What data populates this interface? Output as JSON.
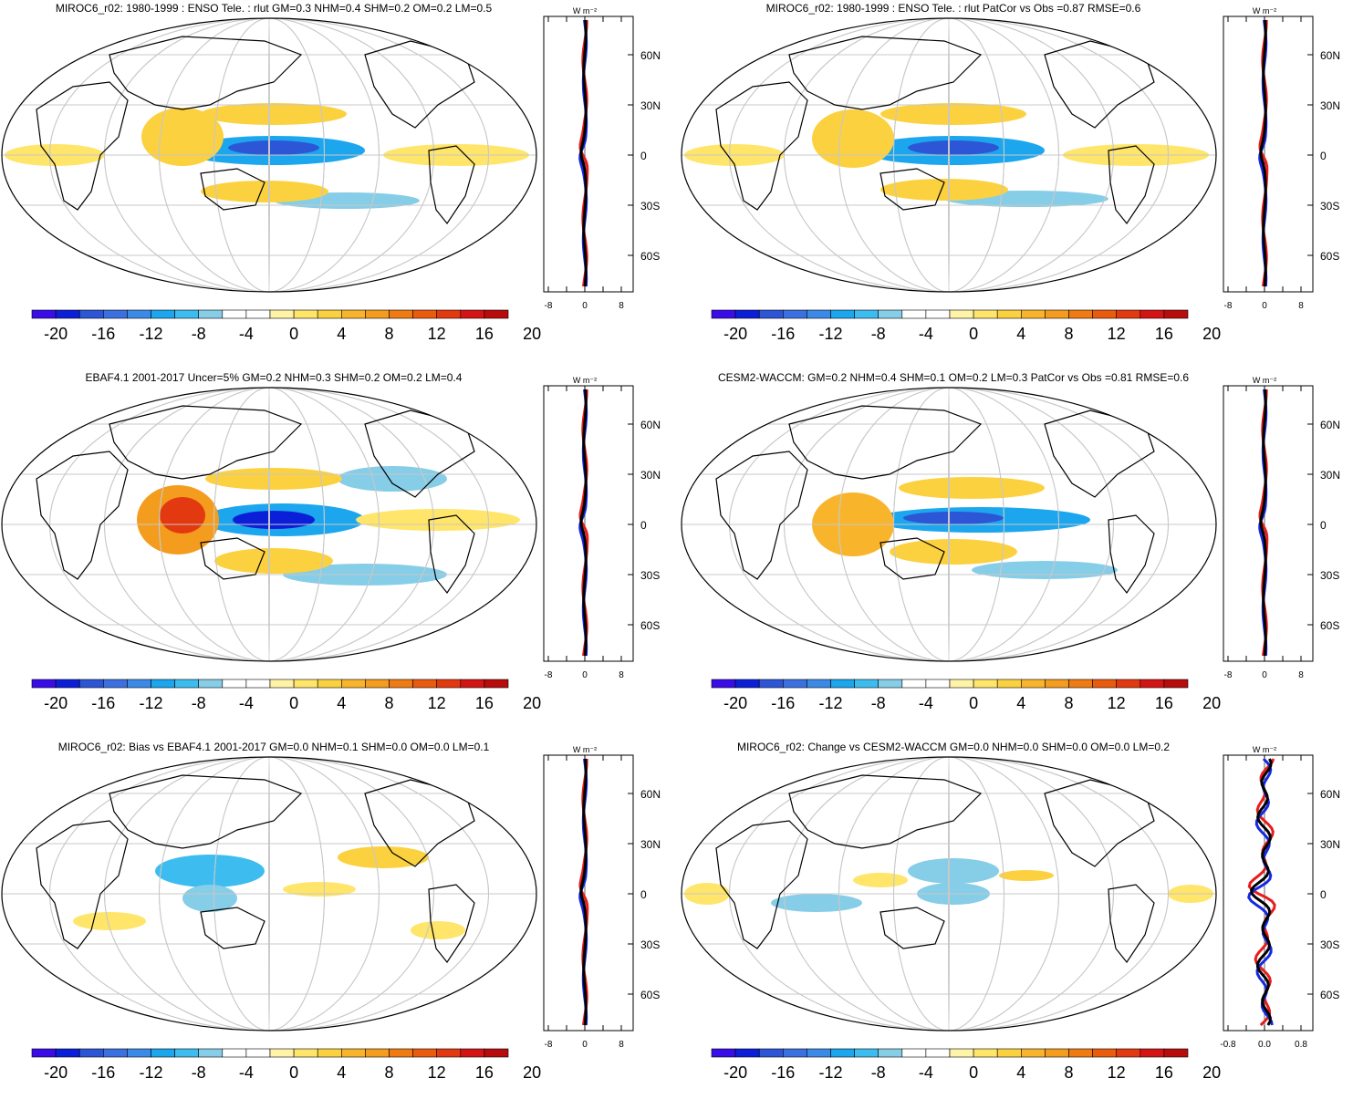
{
  "figure": {
    "colorbar": {
      "tick_labels": [
        "-20",
        "-16",
        "-12",
        "-8",
        "-4",
        "0",
        "4",
        "8",
        "12",
        "16",
        "20"
      ],
      "colors": [
        "#3a0de8",
        "#0c1fd8",
        "#2c56d6",
        "#3b70e0",
        "#3c8ae8",
        "#1ba6ee",
        "#3dbcf0",
        "#86cde8",
        "#ffffff",
        "#ffffff",
        "#fff3a8",
        "#ffe56a",
        "#fcd13f",
        "#f8b52b",
        "#f49c1d",
        "#f07b12",
        "#ea5b0d",
        "#e33910",
        "#d41414",
        "#b80c0c"
      ]
    },
    "profile_units_label": "W m⁻²",
    "lat_labels": [
      "60N",
      "30N",
      "0",
      "30S",
      "60S"
    ],
    "series_colors": {
      "red": "#e81c1c",
      "blue": "#1428e0",
      "black": "#000000"
    },
    "panels": [
      {
        "title": "MIROC6_r02: 1980-1999 : ENSO Tele. : rlut GM=0.3 NHM=0.4 SHM=0.2 OM=0.2 LM=0.5",
        "profile_ticks": [
          "-8",
          "0",
          "8"
        ],
        "blobs": [
          {
            "cx": 300,
            "cy": 165,
            "rx": 100,
            "ry": 16,
            "level": -10
          },
          {
            "cx": 300,
            "cy": 162,
            "rx": 50,
            "ry": 8,
            "level": -16
          },
          {
            "cx": 380,
            "cy": 220,
            "rx": 80,
            "ry": 9,
            "level": -6
          },
          {
            "cx": 200,
            "cy": 150,
            "rx": 45,
            "ry": 32,
            "level": 5
          },
          {
            "cx": 300,
            "cy": 125,
            "rx": 80,
            "ry": 12,
            "level": 4
          },
          {
            "cx": 290,
            "cy": 210,
            "rx": 70,
            "ry": 12,
            "level": 4
          },
          {
            "cx": 60,
            "cy": 170,
            "rx": 55,
            "ry": 12,
            "level": 3
          },
          {
            "cx": 500,
            "cy": 170,
            "rx": 80,
            "ry": 12,
            "level": 3
          },
          {
            "cx": 470,
            "cy": 120,
            "rx": 40,
            "ry": 8,
            "level": -4
          }
        ]
      },
      {
        "title": "MIROC6_r02: 1980-1999 : ENSO Tele. : rlut PatCor vs Obs =0.87 RMSE=0.6",
        "profile_ticks": [
          "-8",
          "0",
          "8"
        ],
        "blobs": [
          {
            "cx": 300,
            "cy": 165,
            "rx": 100,
            "ry": 16,
            "level": -10
          },
          {
            "cx": 300,
            "cy": 162,
            "rx": 50,
            "ry": 8,
            "level": -16
          },
          {
            "cx": 380,
            "cy": 218,
            "rx": 90,
            "ry": 9,
            "level": -6
          },
          {
            "cx": 190,
            "cy": 152,
            "rx": 45,
            "ry": 32,
            "level": 5
          },
          {
            "cx": 300,
            "cy": 125,
            "rx": 80,
            "ry": 12,
            "level": 4
          },
          {
            "cx": 290,
            "cy": 208,
            "rx": 70,
            "ry": 12,
            "level": 4
          },
          {
            "cx": 60,
            "cy": 170,
            "rx": 55,
            "ry": 12,
            "level": 3
          },
          {
            "cx": 500,
            "cy": 170,
            "rx": 80,
            "ry": 12,
            "level": 3
          },
          {
            "cx": 460,
            "cy": 120,
            "rx": 30,
            "ry": 8,
            "level": -4
          }
        ]
      },
      {
        "title": "EBAF4.1 2001-2017 Uncer=5% GM=0.2 NHM=0.3 SHM=0.2 OM=0.2 LM=0.4",
        "profile_ticks": [
          "-8",
          "0",
          "8"
        ],
        "blobs": [
          {
            "cx": 310,
            "cy": 165,
            "rx": 90,
            "ry": 18,
            "level": -10
          },
          {
            "cx": 300,
            "cy": 165,
            "rx": 45,
            "ry": 10,
            "level": -18
          },
          {
            "cx": 400,
            "cy": 225,
            "rx": 90,
            "ry": 12,
            "level": -6
          },
          {
            "cx": 430,
            "cy": 120,
            "rx": 60,
            "ry": 14,
            "level": -5
          },
          {
            "cx": 195,
            "cy": 165,
            "rx": 45,
            "ry": 38,
            "level": 9
          },
          {
            "cx": 200,
            "cy": 160,
            "rx": 25,
            "ry": 20,
            "level": 14
          },
          {
            "cx": 300,
            "cy": 120,
            "rx": 75,
            "ry": 12,
            "level": 4
          },
          {
            "cx": 300,
            "cy": 210,
            "rx": 65,
            "ry": 14,
            "level": 5
          },
          {
            "cx": 480,
            "cy": 165,
            "rx": 90,
            "ry": 12,
            "level": 3
          },
          {
            "cx": 120,
            "cy": 190,
            "rx": 30,
            "ry": 8,
            "level": -4
          }
        ]
      },
      {
        "title": "CESM2-WACCM: GM=0.2 NHM=0.4 SHM=0.1 OM=0.2 LM=0.3 PatCor vs Obs =0.81 RMSE=0.6",
        "profile_ticks": [
          "-8",
          "0",
          "8"
        ],
        "blobs": [
          {
            "cx": 330,
            "cy": 165,
            "rx": 120,
            "ry": 14,
            "level": -10
          },
          {
            "cx": 300,
            "cy": 163,
            "rx": 55,
            "ry": 7,
            "level": -16
          },
          {
            "cx": 400,
            "cy": 220,
            "rx": 80,
            "ry": 10,
            "level": -5
          },
          {
            "cx": 420,
            "cy": 120,
            "rx": 50,
            "ry": 10,
            "level": -4
          },
          {
            "cx": 190,
            "cy": 170,
            "rx": 45,
            "ry": 35,
            "level": 6
          },
          {
            "cx": 320,
            "cy": 130,
            "rx": 80,
            "ry": 12,
            "level": 4
          },
          {
            "cx": 300,
            "cy": 200,
            "rx": 70,
            "ry": 14,
            "level": 4
          },
          {
            "cx": 70,
            "cy": 175,
            "rx": 40,
            "ry": 12,
            "level": -4
          }
        ]
      },
      {
        "title": "MIROC6_r02: Bias vs EBAF4.1 2001-2017 GM=0.0 NHM=0.1 SHM=0.0 OM=0.0 LM=0.1",
        "profile_ticks": [
          "-8",
          "0",
          "8"
        ],
        "blobs": [
          {
            "cx": 230,
            "cy": 145,
            "rx": 60,
            "ry": 18,
            "level": -8
          },
          {
            "cx": 230,
            "cy": 175,
            "rx": 30,
            "ry": 15,
            "level": -6
          },
          {
            "cx": 420,
            "cy": 130,
            "rx": 50,
            "ry": 12,
            "level": 4
          },
          {
            "cx": 350,
            "cy": 165,
            "rx": 40,
            "ry": 8,
            "level": 3
          },
          {
            "cx": 120,
            "cy": 200,
            "rx": 40,
            "ry": 10,
            "level": 3
          },
          {
            "cx": 330,
            "cy": 225,
            "rx": 30,
            "ry": 8,
            "level": -4
          },
          {
            "cx": 480,
            "cy": 210,
            "rx": 30,
            "ry": 10,
            "level": 3
          }
        ]
      },
      {
        "title": "MIROC6_r02: Change vs CESM2-WACCM GM=0.0 NHM=0.0 SHM=0.0 OM=0.0 LM=0.2",
        "profile_ticks": [
          "-0.8",
          "0.0",
          "0.8"
        ],
        "blobs": [
          {
            "cx": 300,
            "cy": 145,
            "rx": 50,
            "ry": 14,
            "level": -6
          },
          {
            "cx": 300,
            "cy": 170,
            "rx": 40,
            "ry": 12,
            "level": -6
          },
          {
            "cx": 150,
            "cy": 180,
            "rx": 50,
            "ry": 10,
            "level": -5
          },
          {
            "cx": 150,
            "cy": 130,
            "rx": 40,
            "ry": 10,
            "level": -4
          },
          {
            "cx": 220,
            "cy": 155,
            "rx": 30,
            "ry": 8,
            "level": 3
          },
          {
            "cx": 380,
            "cy": 150,
            "rx": 30,
            "ry": 6,
            "level": 4
          },
          {
            "cx": 30,
            "cy": 170,
            "rx": 25,
            "ry": 12,
            "level": 3
          },
          {
            "cx": 560,
            "cy": 170,
            "rx": 25,
            "ry": 10,
            "level": 3
          }
        ]
      }
    ]
  }
}
